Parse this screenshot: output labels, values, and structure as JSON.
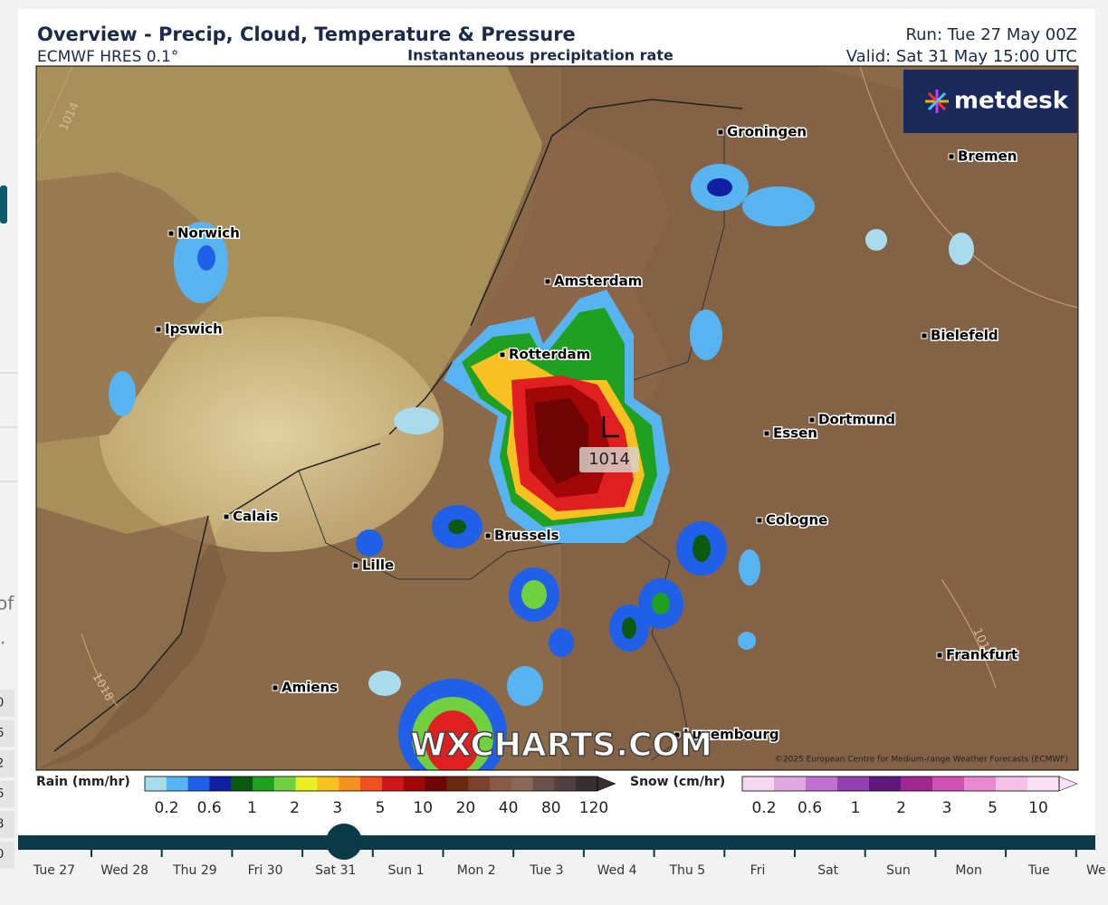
{
  "header": {
    "title": "Overview - Precip, Cloud, Temperature & Pressure",
    "model": "ECMWF HRES 0.1°",
    "product": "Instantaneous precipitation rate",
    "run": "Run: Tue 27 May 00Z",
    "valid": "Valid: Sat 31 May 15:00 UTC"
  },
  "logo": "metdesk",
  "cities": [
    "Groningen",
    "Bremen",
    "Norwich",
    "Amsterdam",
    "Ipswich",
    "Bielefeld",
    "Rotterdam",
    "Dortmund",
    "Essen",
    "Calais",
    "Cologne",
    "Brussels",
    "Lille",
    "Frankfurt",
    "Amiens",
    "Luxembourg"
  ],
  "pressure": {
    "low": "L",
    "low_value": "1014",
    "isobars": [
      "1014",
      "1018",
      "1018"
    ]
  },
  "watermark": "WXCHARTS.COM",
  "copyright": "©2025 European Centre for Medium-range Weather Forecasts (ECMWF)",
  "rain_legend": {
    "title": "Rain (mm/hr)",
    "ticks": [
      "0.2",
      "0.6",
      "1",
      "2",
      "3",
      "5",
      "10",
      "20",
      "40",
      "80",
      "120"
    ],
    "colors": [
      "#a8dcec",
      "#58b4f0",
      "#2060e8",
      "#1020a0",
      "#0a5a10",
      "#20a020",
      "#70d040",
      "#e8f020",
      "#f8c020",
      "#f89020",
      "#f05020",
      "#d01818",
      "#a00808",
      "#700505",
      "#6a2a10",
      "#7a4030",
      "#8a5a48",
      "#8a6858",
      "#6a5048",
      "#504040",
      "#383030"
    ]
  },
  "snow_legend": {
    "title": "Snow (cm/hr)",
    "ticks": [
      "0.2",
      "0.6",
      "1",
      "2",
      "3",
      "5",
      "10"
    ],
    "colors": [
      "#f4d8f0",
      "#e0a8e0",
      "#c070d0",
      "#9040b0",
      "#601880",
      "#a02890",
      "#d050b0",
      "#e888d0",
      "#f4c0e8",
      "#fae0f4"
    ]
  },
  "timeline": [
    "Tue 27",
    "Wed 28",
    "Thu 29",
    "Fri 30",
    "Sat 31",
    "Sun 1",
    "Mon 2",
    "Tue 3",
    "Wed 4",
    "Thu 5",
    "Fri",
    "Sat",
    "Sun",
    "Mon",
    "Tue",
    "We"
  ],
  "sidebar": {
    "fragments": [
      "of",
      "."
    ],
    "numbers": [
      "0",
      "6",
      "2",
      "6",
      "8",
      "0"
    ]
  }
}
